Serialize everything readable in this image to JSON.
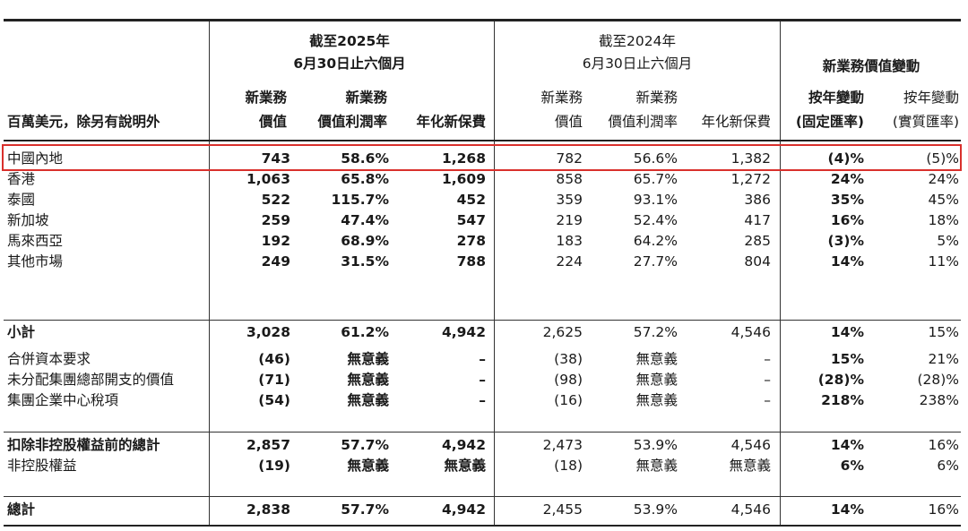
{
  "header": {
    "row_label": "百萬美元，除另有說明外",
    "group_2025": [
      "截至2025年",
      "6月30日止六個月"
    ],
    "group_2024": [
      "截至2024年",
      "6月30日止六個月"
    ],
    "group_change": "新業務價值變動",
    "cols_2025": [
      [
        "新業務",
        "價值"
      ],
      [
        "新業務",
        "價值利潤率"
      ],
      [
        "年化新保費"
      ]
    ],
    "cols_2024": [
      [
        "新業務",
        "價值"
      ],
      [
        "新業務",
        "價值利潤率"
      ],
      [
        "年化新保費"
      ]
    ],
    "cols_change": [
      [
        "按年變動",
        "(固定匯率)"
      ],
      [
        "按年變動",
        "(實質匯率)"
      ]
    ]
  },
  "rows": [
    {
      "label": "中國內地",
      "bold_label": false,
      "values": [
        "743",
        "58.6%",
        "1,268",
        "782",
        "56.6%",
        "1,382",
        "(4)%",
        "(5)%"
      ]
    },
    {
      "label": "香港",
      "bold_label": false,
      "values": [
        "1,063",
        "65.8%",
        "1,609",
        "858",
        "65.7%",
        "1,272",
        "24%",
        "24%"
      ]
    },
    {
      "label": "泰國",
      "bold_label": false,
      "values": [
        "522",
        "115.7%",
        "452",
        "359",
        "93.1%",
        "386",
        "35%",
        "45%"
      ]
    },
    {
      "label": "新加坡",
      "bold_label": false,
      "values": [
        "259",
        "47.4%",
        "547",
        "219",
        "52.4%",
        "417",
        "16%",
        "18%"
      ]
    },
    {
      "label": "馬來西亞",
      "bold_label": false,
      "values": [
        "192",
        "68.9%",
        "278",
        "183",
        "64.2%",
        "285",
        "(3)%",
        "5%"
      ]
    },
    {
      "label": "其他市場",
      "bold_label": false,
      "values": [
        "249",
        "31.5%",
        "788",
        "224",
        "27.7%",
        "804",
        "14%",
        "11%"
      ]
    },
    {
      "label": "小計",
      "bold_label": true,
      "values": [
        "3,028",
        "61.2%",
        "4,942",
        "2,625",
        "57.2%",
        "4,546",
        "14%",
        "15%"
      ]
    },
    {
      "label": "合併資本要求",
      "bold_label": false,
      "values": [
        "(46)",
        "無意義",
        "–",
        "(38)",
        "無意義",
        "–",
        "15%",
        "21%"
      ]
    },
    {
      "label": "未分配集團總部開支的價值",
      "bold_label": false,
      "values": [
        "(71)",
        "無意義",
        "–",
        "(98)",
        "無意義",
        "–",
        "(28)%",
        "(28)%"
      ]
    },
    {
      "label": "集團企業中心稅項",
      "bold_label": false,
      "values": [
        "(54)",
        "無意義",
        "–",
        "(16)",
        "無意義",
        "–",
        "218%",
        "238%"
      ]
    },
    {
      "label": "扣除非控股權益前的總計",
      "bold_label": true,
      "values": [
        "2,857",
        "57.7%",
        "4,942",
        "2,473",
        "53.9%",
        "4,546",
        "14%",
        "16%"
      ]
    },
    {
      "label": "非控股權益",
      "bold_label": false,
      "values": [
        "(19)",
        "無意義",
        "無意義",
        "(18)",
        "無意義",
        "無意義",
        "6%",
        "6%"
      ]
    },
    {
      "label": "總計",
      "bold_label": true,
      "values": [
        "2,838",
        "57.7%",
        "4,942",
        "2,455",
        "53.9%",
        "4,546",
        "14%",
        "16%"
      ]
    }
  ],
  "colors": {
    "highlight": "#d9302c",
    "rule": "#222222"
  }
}
